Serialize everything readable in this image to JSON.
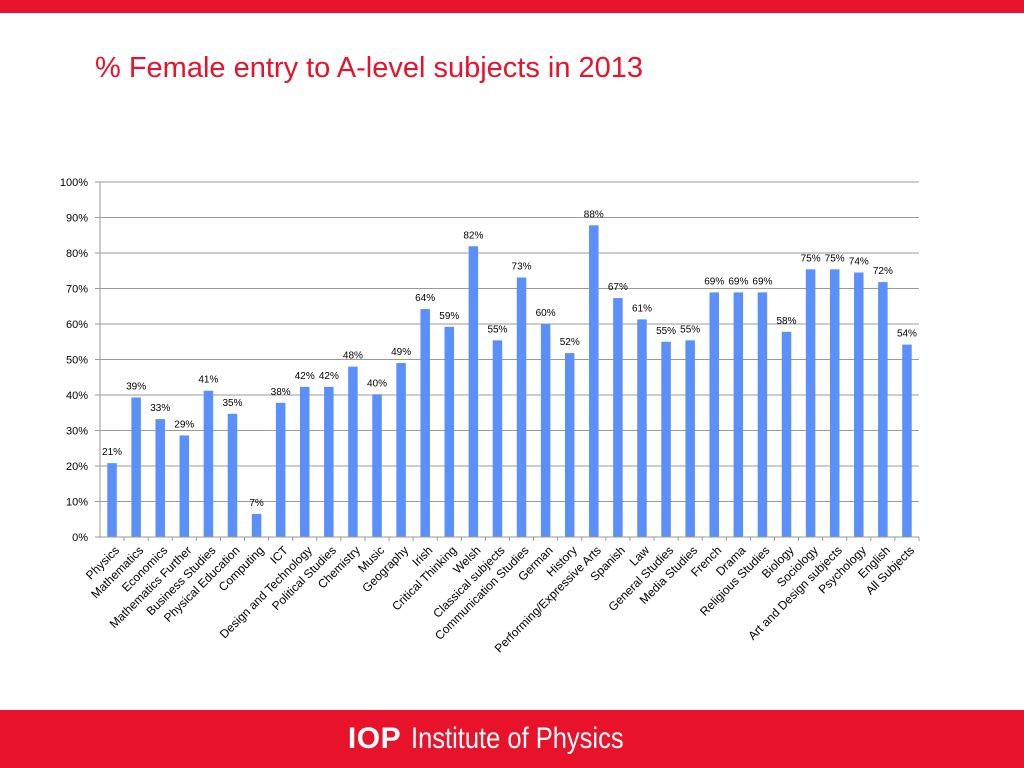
{
  "colors": {
    "brand_red": "#e8132a",
    "bar_blue": "#5b8ff9",
    "grid": "#9a9a9a",
    "text": "#000000"
  },
  "slide": {
    "title": "% Female entry to A-level subjects in 2013"
  },
  "footer": {
    "logo_mark": "IOP",
    "logo_text": "Institute of Physics"
  },
  "chart_data": {
    "type": "bar",
    "title": "",
    "xlabel": "",
    "ylabel": "",
    "ylim": [
      0,
      100
    ],
    "y_ticks": [
      "0%",
      "10%",
      "20%",
      "30%",
      "40%",
      "50%",
      "60%",
      "70%",
      "80%",
      "90%",
      "100%"
    ],
    "grid": true,
    "categories": [
      "Physics",
      "Mathematics",
      "Economics",
      "Mathematics Further",
      "Business Studies",
      "Physical Education",
      "Computing",
      "ICT",
      "Design and Technology",
      "Political Studies",
      "Chemistry",
      "Music",
      "Geography",
      "Irish",
      "Critical Thinking",
      "Welsh",
      "Classical subjects",
      "Communication Studies",
      "German",
      "History",
      "Performing/Expressive Arts",
      "Spanish",
      "Law",
      "General Studies",
      "Media Studies",
      "French",
      "Drama",
      "Religious Studies",
      "Biology",
      "Sociology",
      "Art and Design subjects",
      "Psychology",
      "English",
      "All Subjects"
    ],
    "values": [
      21,
      39,
      33,
      29,
      41,
      35,
      7,
      38,
      42,
      42,
      48,
      40,
      49,
      64,
      59,
      82,
      55,
      73,
      60,
      52,
      88,
      67,
      61,
      55,
      55,
      69,
      69,
      69,
      58,
      75,
      75,
      74,
      72,
      54
    ],
    "data_labels": [
      "21%",
      "39%",
      "33%",
      "29%",
      "41%",
      "35%",
      "7%",
      "38%",
      "42%",
      "42%",
      "48%",
      "40%",
      "49%",
      "64%",
      "59%",
      "82%",
      "55%",
      "73%",
      "60%",
      "52%",
      "88%",
      "67%",
      "61%",
      "55%",
      "55%",
      "69%",
      "69%",
      "69%",
      "58%",
      "75%",
      "75%",
      "74%",
      "72%",
      "54%"
    ],
    "rendered_heights": [
      20.8,
      39.3,
      33.2,
      28.6,
      41.2,
      34.7,
      6.5,
      37.8,
      42.3,
      42.3,
      48.0,
      40.2,
      49.0,
      64.2,
      59.2,
      81.9,
      55.4,
      73.1,
      60.0,
      51.8,
      87.8,
      67.3,
      61.3,
      55.0,
      55.4,
      68.9,
      68.9,
      68.9,
      57.8,
      75.4,
      75.4,
      74.5,
      71.8,
      54.2
    ]
  }
}
